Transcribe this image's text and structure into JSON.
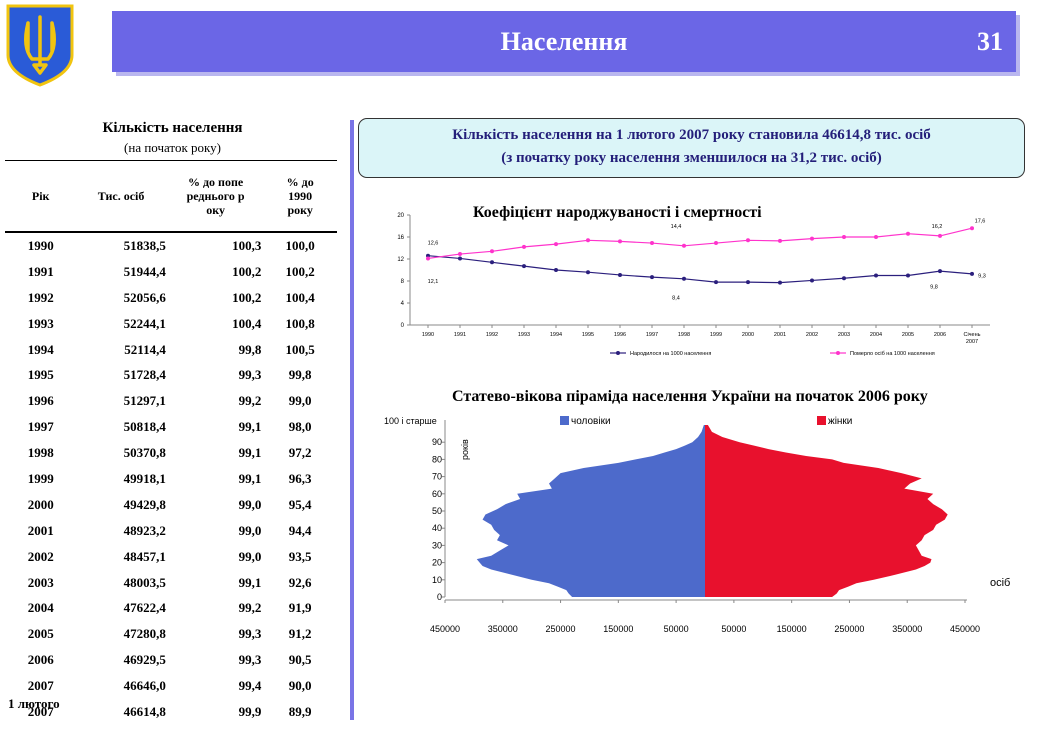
{
  "header": {
    "title": "Населення",
    "page_number": "31",
    "emblem": "trident-coat-of-arms-icon",
    "banner_color": "#6b66e6"
  },
  "population_table": {
    "title": "Кількість населення",
    "subtitle": "(на початок року)",
    "headers": {
      "year": "Рік",
      "pop": "Тис. осіб",
      "prev": "% до попереднього року",
      "base": "% до 1990 року"
    },
    "rows": [
      {
        "year": "1990",
        "pop": "51838,5",
        "prev": "100,3",
        "base": "100,0"
      },
      {
        "year": "1991",
        "pop": "51944,4",
        "prev": "100,2",
        "base": "100,2"
      },
      {
        "year": "1992",
        "pop": "52056,6",
        "prev": "100,2",
        "base": "100,4"
      },
      {
        "year": "1993",
        "pop": "52244,1",
        "prev": "100,4",
        "base": "100,8"
      },
      {
        "year": "1994",
        "pop": "52114,4",
        "prev": "99,8",
        "base": "100,5"
      },
      {
        "year": "1995",
        "pop": "51728,4",
        "prev": "99,3",
        "base": "99,8"
      },
      {
        "year": "1996",
        "pop": "51297,1",
        "prev": "99,2",
        "base": "99,0"
      },
      {
        "year": "1997",
        "pop": "50818,4",
        "prev": "99,1",
        "base": "98,0"
      },
      {
        "year": "1998",
        "pop": "50370,8",
        "prev": "99,1",
        "base": "97,2"
      },
      {
        "year": "1999",
        "pop": "49918,1",
        "prev": "99,1",
        "base": "96,3"
      },
      {
        "year": "2000",
        "pop": "49429,8",
        "prev": "99,0",
        "base": "95,4"
      },
      {
        "year": "2001",
        "pop": "48923,2",
        "prev": "99,0",
        "base": "94,4"
      },
      {
        "year": "2002",
        "pop": "48457,1",
        "prev": "99,0",
        "base": "93,5"
      },
      {
        "year": "2003",
        "pop": "48003,5",
        "prev": "99,1",
        "base": "92,6"
      },
      {
        "year": "2004",
        "pop": "47622,4",
        "prev": "99,2",
        "base": "91,9"
      },
      {
        "year": "2005",
        "pop": "47280,8",
        "prev": "99,3",
        "base": "91,2"
      },
      {
        "year": "2006",
        "pop": "46929,5",
        "prev": "99,3",
        "base": "90,5"
      },
      {
        "year": "2007",
        "pop": "46646,0",
        "prev": "99,4",
        "base": "90,0"
      },
      {
        "year": "2007",
        "pop": "46614,8",
        "prev": "99,9",
        "base": "89,9"
      }
    ],
    "extra_label": "1 лютого"
  },
  "note": {
    "line1": "Кількість населення на 1 лютого 2007 року становила 46614,8 тис. осіб",
    "line2": "(з початку року населення зменшилося на 31,2 тис. осіб)"
  },
  "chart_data": [
    {
      "type": "line",
      "title": "Коефіцієнт народжуваності і смертності",
      "categories": [
        "1990",
        "1991",
        "1992",
        "1993",
        "1994",
        "1995",
        "1996",
        "1997",
        "1998",
        "1999",
        "2000",
        "2001",
        "2002",
        "2003",
        "2004",
        "2005",
        "2006",
        "Січень 2007"
      ],
      "ylim": [
        0,
        20
      ],
      "yticks": [
        "0",
        "4",
        "8",
        "12",
        "16",
        "20"
      ],
      "legend_position": "bottom",
      "series": [
        {
          "name": "Народилося на 1000 населення",
          "color": "#2b1f7d",
          "values": [
            12.6,
            12.1,
            11.4,
            10.7,
            10.0,
            9.6,
            9.1,
            8.7,
            8.4,
            7.8,
            7.8,
            7.7,
            8.1,
            8.5,
            9.0,
            9.0,
            9.8,
            9.3
          ]
        },
        {
          "name": "Померло осіб на 1000 населення",
          "color": "#ff33cc",
          "values": [
            12.1,
            12.9,
            13.4,
            14.2,
            14.7,
            15.4,
            15.2,
            14.9,
            14.4,
            14.9,
            15.4,
            15.3,
            15.7,
            16.0,
            16.0,
            16.6,
            16.2,
            17.6
          ]
        }
      ],
      "data_labels": [
        "12,6",
        "12,1",
        "14,4",
        "8,4",
        "16,2",
        "9,8",
        "17,6",
        "9,3"
      ]
    },
    {
      "type": "bar",
      "title": "Статево-вікова піраміда населення України на початок 2006 року",
      "ylabel": "років",
      "xlabel": "осіб",
      "top_age_label": "100 і старше",
      "yticks": [
        "0",
        "10",
        "20",
        "30",
        "40",
        "50",
        "60",
        "70",
        "80",
        "90"
      ],
      "xticks": [
        "450000",
        "350000",
        "250000",
        "150000",
        "50000",
        "50000",
        "150000",
        "250000",
        "350000",
        "450000"
      ],
      "series": [
        {
          "name": "чоловіки",
          "color": "#4d6acb",
          "points": [
            [
              0,
              230000
            ],
            [
              2,
              236000
            ],
            [
              4,
              240000
            ],
            [
              6,
              255000
            ],
            [
              8,
              270000
            ],
            [
              10,
              300000
            ],
            [
              13,
              335000
            ],
            [
              16,
              370000
            ],
            [
              18,
              385000
            ],
            [
              20,
              390000
            ],
            [
              22,
              395000
            ],
            [
              24,
              370000
            ],
            [
              27,
              355000
            ],
            [
              30,
              340000
            ],
            [
              33,
              360000
            ],
            [
              36,
              355000
            ],
            [
              39,
              365000
            ],
            [
              42,
              370000
            ],
            [
              45,
              385000
            ],
            [
              48,
              380000
            ],
            [
              51,
              360000
            ],
            [
              54,
              345000
            ],
            [
              57,
              320000
            ],
            [
              60,
              325000
            ],
            [
              63,
              265000
            ],
            [
              66,
              270000
            ],
            [
              69,
              260000
            ],
            [
              72,
              250000
            ],
            [
              75,
              210000
            ],
            [
              78,
              150000
            ],
            [
              80,
              120000
            ],
            [
              82,
              90000
            ],
            [
              84,
              70000
            ],
            [
              86,
              50000
            ],
            [
              88,
              35000
            ],
            [
              90,
              22000
            ],
            [
              93,
              12000
            ],
            [
              96,
              6000
            ],
            [
              100,
              2000
            ]
          ]
        },
        {
          "name": "жінки",
          "color": "#e8112d",
          "points": [
            [
              0,
              220000
            ],
            [
              2,
              228000
            ],
            [
              4,
              232000
            ],
            [
              6,
              248000
            ],
            [
              8,
              262000
            ],
            [
              10,
              292000
            ],
            [
              13,
              330000
            ],
            [
              16,
              365000
            ],
            [
              18,
              380000
            ],
            [
              20,
              390000
            ],
            [
              22,
              392000
            ],
            [
              24,
              375000
            ],
            [
              27,
              370000
            ],
            [
              30,
              365000
            ],
            [
              33,
              375000
            ],
            [
              36,
              380000
            ],
            [
              39,
              395000
            ],
            [
              42,
              400000
            ],
            [
              45,
              415000
            ],
            [
              48,
              420000
            ],
            [
              51,
              410000
            ],
            [
              54,
              395000
            ],
            [
              57,
              385000
            ],
            [
              60,
              395000
            ],
            [
              63,
              345000
            ],
            [
              66,
              355000
            ],
            [
              69,
              375000
            ],
            [
              72,
              340000
            ],
            [
              75,
              300000
            ],
            [
              78,
              240000
            ],
            [
              80,
              220000
            ],
            [
              82,
              175000
            ],
            [
              84,
              140000
            ],
            [
              86,
              110000
            ],
            [
              88,
              85000
            ],
            [
              90,
              60000
            ],
            [
              93,
              30000
            ],
            [
              96,
              12000
            ],
            [
              100,
              5000
            ]
          ]
        }
      ]
    }
  ]
}
